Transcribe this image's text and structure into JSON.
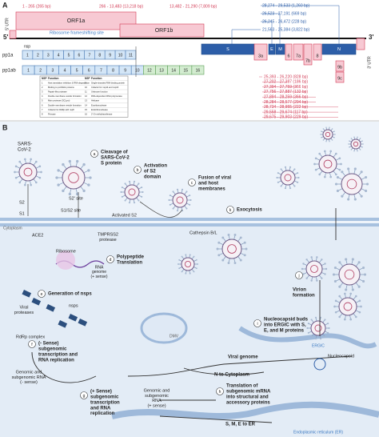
{
  "panel_a": {
    "label": "A",
    "orf_ranges": [
      "1 - 265 (265 bp)",
      "266 - 13,483 (13,218 bp)",
      "13,482 - 21,290 (7,809 bp)"
    ],
    "utr5": "5' UTR",
    "utr3": "3' UTR",
    "end5": "5'",
    "end3": "3'",
    "orf1a": "ORF1a",
    "orf1b": "ORF1b",
    "frameshift": "Ribosome frameshifting site",
    "nsp": "nsp",
    "pp1a": "pp1a",
    "pp1ab": "pp1ab",
    "pp1a_nsps": [
      "1",
      "2",
      "3",
      "4",
      "5",
      "6",
      "7",
      "8",
      "9",
      "10",
      "11"
    ],
    "pp1ab_nsps": [
      "1",
      "2",
      "3",
      "4",
      "5",
      "6",
      "7",
      "8",
      "9",
      "10",
      "12",
      "13",
      "14",
      "15",
      "16"
    ],
    "structural_ranges": [
      "28,274 - 29,533 (1,260 bp)",
      "26,523 - 27,191 (669 bp)",
      "26,245 - 26,472 (228 bp)",
      "21,563 - 25,384 (3,822 bp)"
    ],
    "genes": [
      "S",
      "3a",
      "E",
      "M",
      "6",
      "7a",
      "7b",
      "8",
      "N",
      "9b",
      "9c"
    ],
    "accessory_ranges": [
      "25,393 - 26,220 (828 bp)",
      "27,202 - 27,387 (186 bp)",
      "27,394 - 27,759 (366 bp)",
      "27,756 - 27,887 (132 bp)",
      "27,894 - 28,259 (366 bp)",
      "28,284 - 28,577 (294 bp)",
      "28,734 - 28,955 (222 bp)",
      "29,558 - 29,674 (117 bp)",
      "29,675 - 29,903 (229 bp)"
    ],
    "nsp_table": {
      "header": [
        "NSP",
        "Function",
        "NSP",
        "Function"
      ],
      "rows": [
        [
          "1",
          "Host translation inhibition & RNA degradation",
          "9",
          "Single-stranded RNA binding protein"
        ],
        [
          "2",
          "Binding to prohibitin proteins",
          "10",
          "Cofactor for nsp14 and nsp16"
        ],
        [
          "3",
          "Papain-like protease",
          "11",
          "Unknown function"
        ],
        [
          "4",
          "Double-membrane vesicle formation",
          "12",
          "RNA-dependent RNA polymerase"
        ],
        [
          "5",
          "Main protease (3CLpro)",
          "13",
          "Helicase"
        ],
        [
          "6",
          "Double-membrane vesicle formation",
          "14",
          "Exoribonuclease"
        ],
        [
          "7",
          "Cofactor for RdRp with nsp8",
          "15",
          "Endoribonuclease"
        ],
        [
          "8",
          "Primase",
          "16",
          "2'-O-methyltransferase"
        ]
      ]
    }
  },
  "panel_b": {
    "label": "B",
    "virus": [
      "SARS-",
      "CoV-2"
    ],
    "steps": [
      {
        "id": "a",
        "text": [
          "Cleavage of",
          "SARS-CoV-2",
          "S protein"
        ]
      },
      {
        "id": "b",
        "text": [
          "Activation",
          "of S2",
          "domain"
        ]
      },
      {
        "id": "c",
        "text": [
          "Fusion of viral",
          "and host",
          "membranes"
        ]
      },
      {
        "id": "d",
        "text": [
          "Polypeptide",
          "Translation"
        ]
      },
      {
        "id": "e",
        "text": [
          "Generation of nsps"
        ]
      },
      {
        "id": "f",
        "text": [
          "(- Sense)",
          "subgenomic",
          "transcription and",
          "RNA replication"
        ]
      },
      {
        "id": "g",
        "text": [
          "(+ Sense)",
          "subgenomic",
          "transcription",
          "and RNA",
          "replication"
        ]
      },
      {
        "id": "h",
        "text": [
          "Translation of",
          "subgenomic mRNA",
          "into structural and",
          "accessory proteins"
        ]
      },
      {
        "id": "i",
        "text": [
          "Nucleocapsid buds",
          "into ERGIC with S,",
          "E, and M proteins"
        ]
      },
      {
        "id": "j",
        "text": [
          "Virion",
          "formation"
        ]
      },
      {
        "id": "k",
        "text": [
          "Exocytosis"
        ]
      }
    ],
    "s2_site": "S2' site",
    "s2": "S2",
    "s1": "S1",
    "s1s2_site": "S1/S2 site",
    "activated_s2": "Activated S2",
    "cytoplasm": "Cytoplasm",
    "ace2": "ACE2",
    "tmprss2": [
      "TMPRSS2",
      "protease"
    ],
    "cathepsin": "Cathepsin B/L",
    "ribosome": "Ribosome",
    "rna_genome": [
      "RNA",
      "genome",
      "(+ sense)"
    ],
    "viral_proteases": [
      "Viral",
      "proteases"
    ],
    "nsps": "nsps",
    "rdrp": "RdRp complex",
    "dmv": "DMV",
    "neg_rna": [
      "Genomic and",
      "subgenomic RNA",
      "(- sense)"
    ],
    "pos_rna": [
      "Genomic and",
      "subgenomic",
      "RNA",
      "(+ sense)"
    ],
    "viral_genome": "Viral genome",
    "n_to_cytoplasm": "N to Cytoplasm",
    "s_m_e_to_er": "S, M, E to ER",
    "ergic": "ERGIC",
    "nucleocapsid": "Nucleocapsid",
    "er": "Endoplasmic reticulum (ER)"
  }
}
